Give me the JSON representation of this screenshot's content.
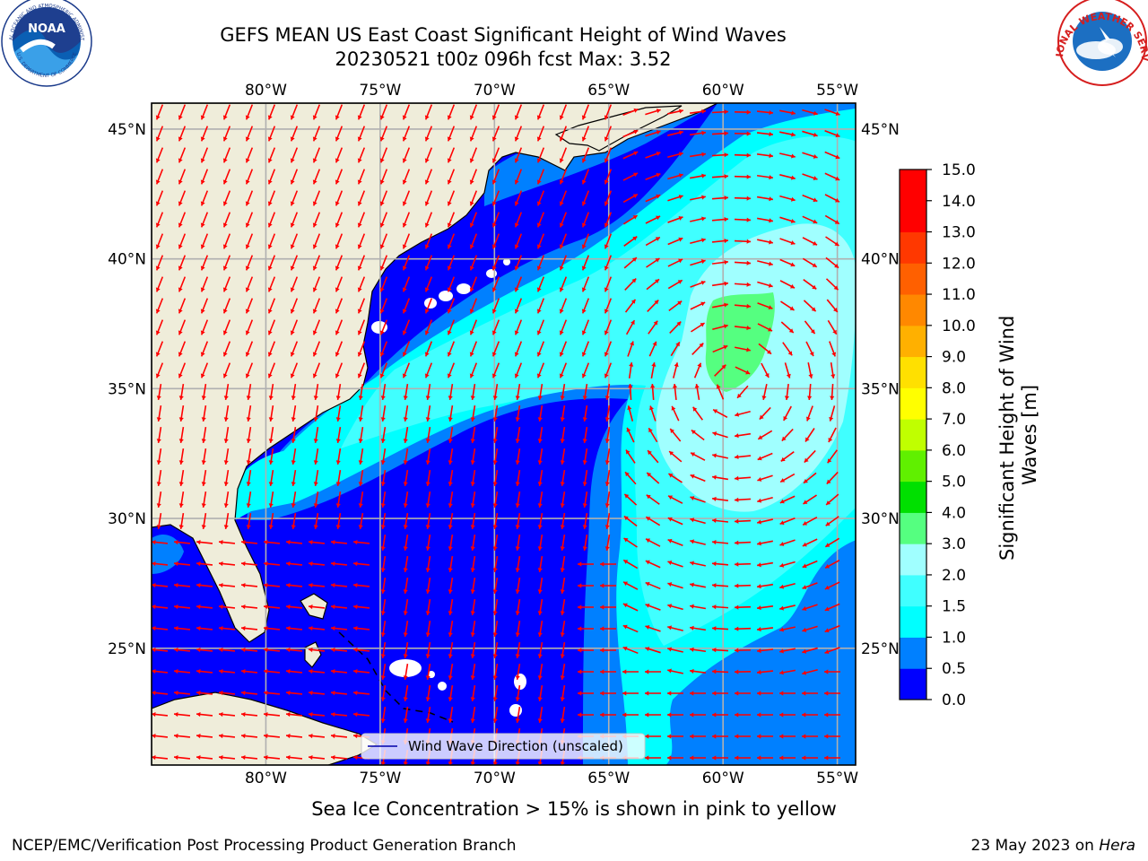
{
  "header": {
    "title_line1": "GEFS MEAN US East Coast Significant Height of Wind Waves",
    "title_line2": "20230521 t00z 096h fcst   Max: 3.52"
  },
  "logos": {
    "noaa": {
      "label": "NOAA",
      "ring_text": "NATIONAL OCEANIC AND ATMOSPHERIC ADMINISTRATION",
      "bottom_text": "U.S. DEPARTMENT OF COMMERCE"
    },
    "nws": {
      "ring_text": "NATIONAL WEATHER SERVICE"
    }
  },
  "map": {
    "lon_ticks": [
      "80°W",
      "75°W",
      "70°W",
      "65°W",
      "60°W",
      "55°W"
    ],
    "lat_ticks": [
      "45°N",
      "40°N",
      "35°N",
      "30°N",
      "25°N"
    ],
    "lon_values": [
      -80,
      -75,
      -70,
      -65,
      -60,
      -55
    ],
    "lat_values": [
      45,
      40,
      35,
      30,
      25
    ],
    "lon_range": [
      -85,
      -54.2
    ],
    "lat_range": [
      20.5,
      46
    ],
    "grid": true,
    "legend": {
      "label": "Wind Wave Direction (unscaled)",
      "position": "bottom-center"
    },
    "colors": {
      "land": "#efedda",
      "coast": "#000000",
      "arrow": "#ff0000",
      "grid": "#b0b0b0"
    }
  },
  "colorbar": {
    "label": "Significant Height of Wind Waves [m]",
    "ticks": [
      "0.0",
      "0.5",
      "1.0",
      "1.5",
      "2.0",
      "3.0",
      "4.0",
      "5.0",
      "6.0",
      "7.0",
      "8.0",
      "9.0",
      "10.0",
      "11.0",
      "12.0",
      "13.0",
      "14.0",
      "15.0"
    ],
    "colors": [
      "#0000ff",
      "#0080ff",
      "#00ffff",
      "#40ffff",
      "#a0ffff",
      "#55ff80",
      "#00e000",
      "#60f000",
      "#c0ff00",
      "#ffff00",
      "#ffe000",
      "#ffb000",
      "#ff8800",
      "#ff6000",
      "#ff3800",
      "#ff0000",
      "#ff0000"
    ]
  },
  "footer": {
    "note": "Sea Ice Concentration > 15% is shown in pink to yellow",
    "credit": "NCEP/EMC/Verification Post Processing Product Generation Branch",
    "date": "23 May 2023 on",
    "machine": "Hera"
  }
}
